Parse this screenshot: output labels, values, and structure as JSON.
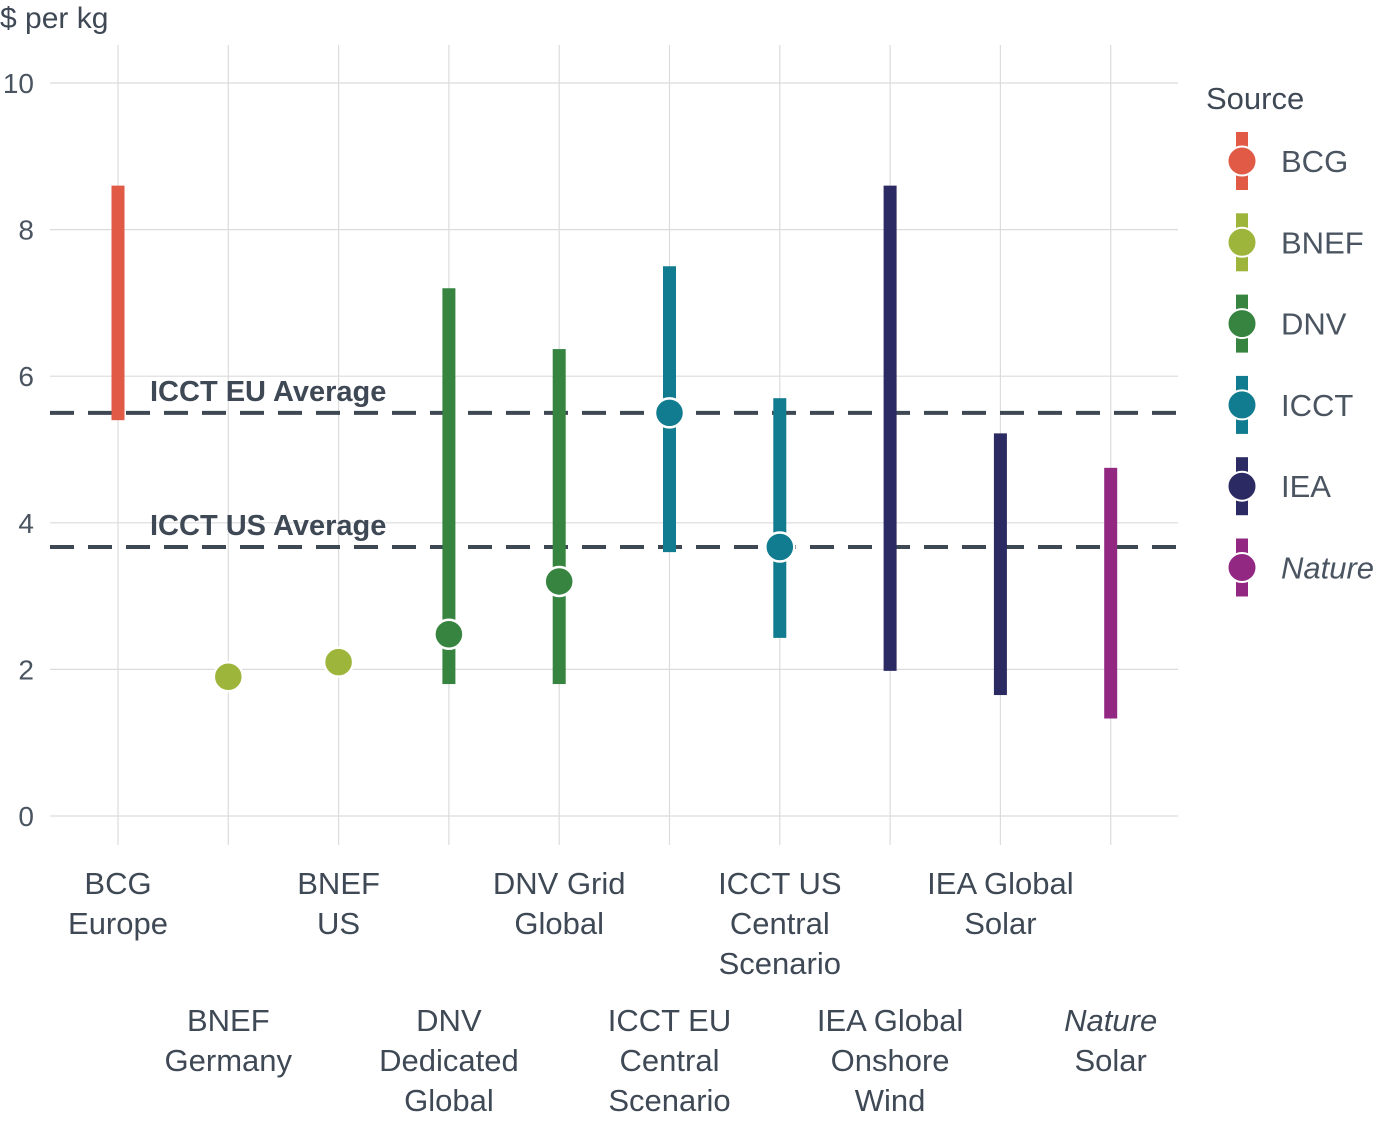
{
  "chart_data": {
    "type": "range",
    "ylabel": "$ per kg",
    "ylim": [
      0,
      10
    ],
    "yticks": [
      0,
      2,
      4,
      6,
      8,
      10
    ],
    "grid": true,
    "legend": {
      "title": "Source",
      "placement": "right",
      "entries": [
        {
          "name": "BCG",
          "color": "#e05a45",
          "italic": false
        },
        {
          "name": "BNEF",
          "color": "#9db53a",
          "italic": false
        },
        {
          "name": "DNV",
          "color": "#368440",
          "italic": false
        },
        {
          "name": "ICCT",
          "color": "#117c8f",
          "italic": false
        },
        {
          "name": "IEA",
          "color": "#2b2a62",
          "italic": false
        },
        {
          "name": "Nature",
          "color": "#922882",
          "italic": true
        }
      ]
    },
    "reference_lines": [
      {
        "label": "ICCT EU Average",
        "y": 5.5
      },
      {
        "label": "ICCT US Average",
        "y": 3.67
      }
    ],
    "series": [
      {
        "label": [
          "BCG",
          "Europe"
        ],
        "source": "BCG",
        "low": 5.4,
        "high": 8.6,
        "point": null
      },
      {
        "label": [
          "BNEF",
          "Germany"
        ],
        "source": "BNEF",
        "low": null,
        "high": null,
        "point": 1.9
      },
      {
        "label": [
          "BNEF",
          "US"
        ],
        "source": "BNEF",
        "low": null,
        "high": null,
        "point": 2.1
      },
      {
        "label": [
          "DNV",
          "Dedicated",
          "Global"
        ],
        "source": "DNV",
        "low": 1.8,
        "high": 7.2,
        "point": 2.48
      },
      {
        "label": [
          "DNV Grid",
          "Global"
        ],
        "source": "DNV",
        "low": 1.8,
        "high": 6.37,
        "point": 3.2
      },
      {
        "label": [
          "ICCT EU",
          "Central",
          "Scenario"
        ],
        "source": "ICCT",
        "low": 3.6,
        "high": 7.5,
        "point": 5.5
      },
      {
        "label": [
          "ICCT US",
          "Central",
          "Scenario"
        ],
        "source": "ICCT",
        "low": 2.43,
        "high": 5.7,
        "point": 3.67
      },
      {
        "label": [
          "IEA Global",
          "Onshore",
          "Wind"
        ],
        "source": "IEA",
        "low": 1.98,
        "high": 8.6,
        "point": null
      },
      {
        "label": [
          "IEA Global",
          "Solar"
        ],
        "source": "IEA",
        "low": 1.65,
        "high": 5.22,
        "point": null
      },
      {
        "label": [
          "Nature",
          "Solar"
        ],
        "source": "Nature",
        "low": 1.33,
        "high": 4.75,
        "point": null,
        "italic_first_word": true
      }
    ]
  }
}
